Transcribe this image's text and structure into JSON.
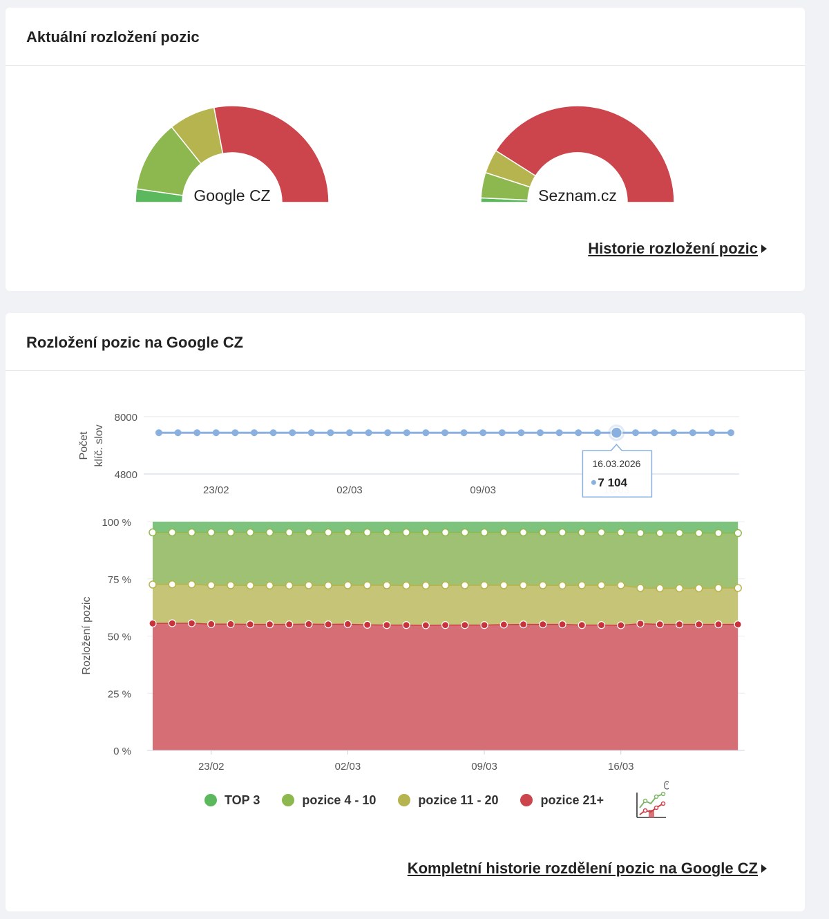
{
  "card_distribution": {
    "title": "Aktuální rozložení pozic",
    "history_link": "Historie rozložení pozic"
  },
  "card_google": {
    "title": "Rozložení pozic na Google CZ",
    "history_link": "Kompletní historie rozdělení pozic na Google CZ"
  },
  "colors": {
    "top3": "#5cb85c",
    "pos4_10": "#8db850",
    "pos11_20": "#b6b44e",
    "pos21": "#cc444c",
    "keywords_line": "#8ab0e0"
  },
  "legend": [
    {
      "label": "TOP 3",
      "color": "#5cb85c"
    },
    {
      "label": "pozice 4 - 10",
      "color": "#8db850"
    },
    {
      "label": "pozice 11 - 20",
      "color": "#b6b44e"
    },
    {
      "label": "pozice 21+",
      "color": "#cc444c"
    }
  ],
  "tooltip": {
    "date": "16.03.2026",
    "value": "7 104"
  },
  "chart_data": [
    {
      "type": "pie",
      "subtype": "semi-donut",
      "title": "Google CZ",
      "labels": [
        "TOP 3",
        "pozice 4 - 10",
        "pozice 11 - 20",
        "pozice 21+"
      ],
      "values": [
        4.5,
        24,
        15.5,
        56
      ]
    },
    {
      "type": "pie",
      "subtype": "semi-donut",
      "title": "Seznam.cz",
      "labels": [
        "TOP 3",
        "pozice 4 - 10",
        "pozice 11 - 20",
        "pozice 21+"
      ],
      "values": [
        1.5,
        8.5,
        8,
        82
      ]
    },
    {
      "type": "line",
      "ylabel": "Počet klíč. slov",
      "ylim": [
        4800,
        8000
      ],
      "yticks": [
        "8000",
        "4800"
      ],
      "xticks": [
        "23/02",
        "02/03",
        "09/03",
        "16/03"
      ],
      "tick_days": [
        3,
        10,
        17,
        24
      ],
      "start": "20.02.2026",
      "values": [
        7104,
        7104,
        7104,
        7104,
        7104,
        7104,
        7104,
        7104,
        7104,
        7104,
        7104,
        7104,
        7104,
        7104,
        7104,
        7104,
        7104,
        7104,
        7104,
        7104,
        7104,
        7104,
        7104,
        7104,
        7104,
        7104,
        7104,
        7104,
        7104,
        7104,
        7104
      ],
      "highlight_index": 24
    },
    {
      "type": "area",
      "stacked": "percent",
      "ylabel": "Rozložení pozic",
      "ylim": [
        0,
        100
      ],
      "yticks": [
        "100 %",
        "75 %",
        "50 %",
        "25 %",
        "0 %"
      ],
      "xticks": [
        "23/02",
        "02/03",
        "09/03",
        "16/03"
      ],
      "tick_days": [
        3,
        10,
        17,
        24
      ],
      "series": [
        {
          "name": "pozice 21+",
          "values": [
            55.5,
            55.6,
            55.6,
            55.2,
            55.2,
            55.1,
            55.1,
            55.1,
            55.2,
            55.1,
            55.2,
            54.9,
            54.8,
            54.8,
            54.7,
            54.8,
            54.8,
            54.8,
            55.0,
            55.1,
            55.1,
            55.1,
            54.8,
            54.8,
            54.7,
            55.4,
            55.1,
            55.1,
            55.1,
            55.1,
            55.1
          ]
        },
        {
          "name": "pozice 11 - 20",
          "values": [
            72.5,
            72.6,
            72.6,
            72.2,
            72.2,
            72.1,
            72.1,
            72.1,
            72.2,
            72.1,
            72.2,
            72.2,
            72.2,
            72.1,
            72.1,
            72.2,
            72.2,
            72.2,
            72.2,
            72.2,
            72.2,
            72.1,
            72.2,
            72.2,
            72.2,
            71.0,
            70.9,
            70.9,
            70.9,
            71.0,
            71.0
          ]
        },
        {
          "name": "pozice 4 - 10",
          "values": [
            95.3,
            95.3,
            95.3,
            95.3,
            95.3,
            95.3,
            95.3,
            95.3,
            95.3,
            95.3,
            95.3,
            95.3,
            95.3,
            95.3,
            95.3,
            95.3,
            95.3,
            95.3,
            95.3,
            95.3,
            95.3,
            95.3,
            95.3,
            95.3,
            95.3,
            95.0,
            95.0,
            95.0,
            95.0,
            95.0,
            95.0
          ]
        },
        {
          "name": "TOP 3",
          "values": [
            100,
            100,
            100,
            100,
            100,
            100,
            100,
            100,
            100,
            100,
            100,
            100,
            100,
            100,
            100,
            100,
            100,
            100,
            100,
            100,
            100,
            100,
            100,
            100,
            100,
            100,
            100,
            100,
            100,
            100,
            100
          ]
        }
      ]
    }
  ]
}
